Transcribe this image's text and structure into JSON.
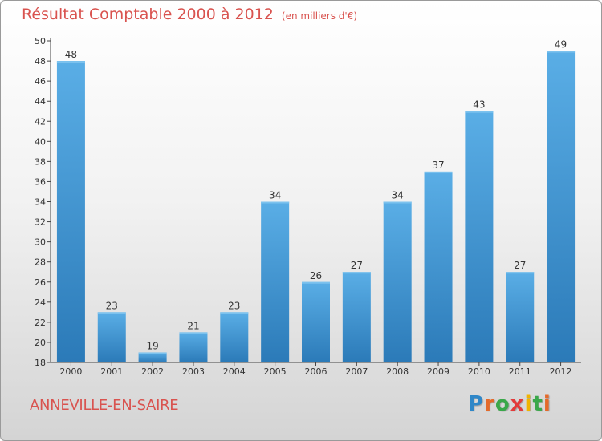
{
  "chart_data": {
    "type": "bar",
    "title": "Résultat Comptable 2000 à 2012",
    "unit": "(en milliers d'€)",
    "categories": [
      "2000",
      "2001",
      "2002",
      "2003",
      "2004",
      "2005",
      "2006",
      "2007",
      "2008",
      "2009",
      "2010",
      "2011",
      "2012"
    ],
    "values": [
      48,
      23,
      19,
      21,
      23,
      34,
      26,
      27,
      34,
      37,
      43,
      27,
      49
    ],
    "xlabel": "",
    "ylabel": "",
    "ylim": [
      18,
      50
    ],
    "yticks": [
      18,
      20,
      22,
      24,
      26,
      28,
      30,
      32,
      34,
      36,
      38,
      40,
      42,
      44,
      46,
      48,
      50
    ],
    "grid": false,
    "bar_color_light": "#5aaee6",
    "bar_color_dark": "#2b7ab8"
  },
  "footer": {
    "commune": "ANNEVILLE-EN-SAIRE",
    "logo_text": "Proxiti"
  },
  "colors": {
    "title": "#d9534f",
    "axis": "#333333"
  }
}
